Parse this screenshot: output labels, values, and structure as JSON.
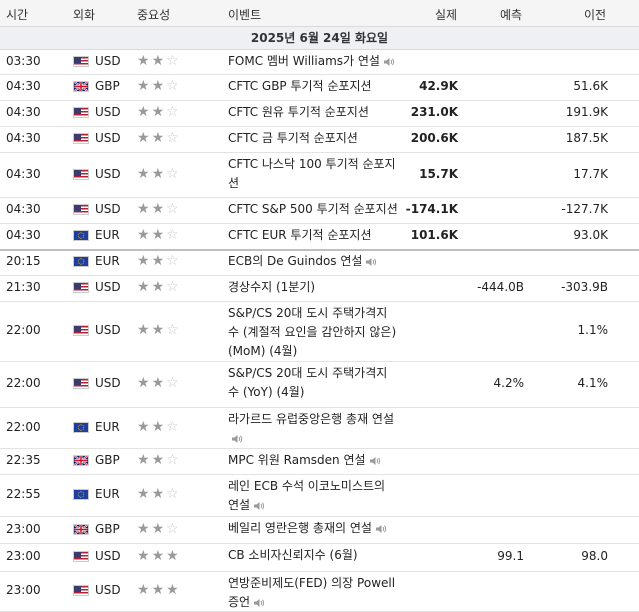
{
  "header": {
    "time": "시간",
    "currency": "외화",
    "importance": "중요성",
    "event": "이벤트",
    "actual": "실제",
    "forecast": "예측",
    "previous": "이전"
  },
  "date": "2025년 6월 24일 화요일",
  "rows": [
    {
      "time": "03:30",
      "cur": "USD",
      "flag": "us",
      "stars": 2,
      "event": "FOMC 멤버 Williams가 연설",
      "speech": true,
      "actual": "",
      "forecast": "",
      "prev": ""
    },
    {
      "time": "04:30",
      "cur": "GBP",
      "flag": "gb",
      "stars": 2,
      "event": "CFTC GBP 투기적 순포지션",
      "actual": "42.9K",
      "forecast": "",
      "prev": "51.6K"
    },
    {
      "time": "04:30",
      "cur": "USD",
      "flag": "us",
      "stars": 2,
      "event": "CFTC 원유 투기적 순포지션",
      "actual": "231.0K",
      "forecast": "",
      "prev": "191.9K"
    },
    {
      "time": "04:30",
      "cur": "USD",
      "flag": "us",
      "stars": 2,
      "event": "CFTC 금 투기적 순포지션",
      "actual": "200.6K",
      "forecast": "",
      "prev": "187.5K"
    },
    {
      "time": "04:30",
      "cur": "USD",
      "flag": "us",
      "stars": 2,
      "event": "CFTC 나스닥 100 투기적 순포지션",
      "actual": "15.7K",
      "forecast": "",
      "prev": "17.7K"
    },
    {
      "time": "04:30",
      "cur": "USD",
      "flag": "us",
      "stars": 2,
      "event": "CFTC S&P 500 투기적 순포지션",
      "actual": "-174.1K",
      "forecast": "",
      "prev": "-127.7K"
    },
    {
      "time": "04:30",
      "cur": "EUR",
      "flag": "eu",
      "stars": 2,
      "event": "CFTC EUR 투기적 순포지션",
      "actual": "101.6K",
      "forecast": "",
      "prev": "93.0K"
    },
    {
      "time": "20:15",
      "cur": "EUR",
      "flag": "eu",
      "stars": 2,
      "event": "ECB의 De Guindos 연설",
      "speech": true,
      "actual": "",
      "forecast": "",
      "prev": ""
    },
    {
      "time": "21:30",
      "cur": "USD",
      "flag": "us",
      "stars": 2,
      "event": "경상수지 (1분기)",
      "actual": "",
      "forecast": "-444.0B",
      "prev": "-303.9B"
    },
    {
      "time": "22:00",
      "cur": "USD",
      "flag": "us",
      "stars": 2,
      "event": "S&P/CS 20대 도시 주택가격지수 (계절적 요인을 감안하지 않은) (MoM) (4월)",
      "actual": "",
      "forecast": "",
      "prev": "1.1%"
    },
    {
      "time": "22:00",
      "cur": "USD",
      "flag": "us",
      "stars": 2,
      "event": "S&P/CS 20대 도시 주택가격지수 (YoY) (4월)",
      "actual": "",
      "forecast": "4.2%",
      "prev": "4.1%"
    },
    {
      "time": "22:00",
      "cur": "EUR",
      "flag": "eu",
      "stars": 2,
      "event": "라가르드 유럽중앙은행 총재 연설",
      "speech": true,
      "actual": "",
      "forecast": "",
      "prev": ""
    },
    {
      "time": "22:35",
      "cur": "GBP",
      "flag": "gb",
      "stars": 2,
      "event": "MPC 위원 Ramsden 연설",
      "speech": true,
      "actual": "",
      "forecast": "",
      "prev": ""
    },
    {
      "time": "22:55",
      "cur": "EUR",
      "flag": "eu",
      "stars": 2,
      "event": "레인 ECB 수석 이코노미스트의 연설",
      "speech": true,
      "actual": "",
      "forecast": "",
      "prev": ""
    },
    {
      "time": "23:00",
      "cur": "GBP",
      "flag": "gb",
      "stars": 2,
      "event": "베일리 영란은행 총재의 연설",
      "speech": true,
      "actual": "",
      "forecast": "",
      "prev": ""
    },
    {
      "time": "23:00",
      "cur": "USD",
      "flag": "us",
      "stars": 3,
      "event": "CB 소비자신뢰지수 (6월)",
      "actual": "",
      "forecast": "99.1",
      "prev": "98.0"
    },
    {
      "time": "23:00",
      "cur": "USD",
      "flag": "us",
      "stars": 3,
      "event": "연방준비제도(FED) 의장 Powell 증언",
      "speech": true,
      "actual": "",
      "forecast": "",
      "prev": ""
    }
  ]
}
